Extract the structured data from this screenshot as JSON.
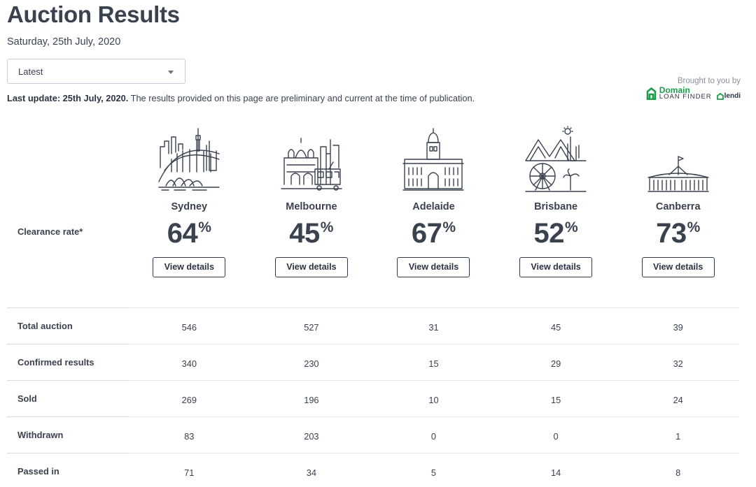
{
  "page": {
    "title": "Auction Results",
    "date": "Saturday, 25th July, 2020"
  },
  "filter": {
    "selected": "Latest"
  },
  "update": {
    "bold": "Last update: 25th July, 2020.",
    "text": " The results provided on this page are preliminary and current at the time of publication."
  },
  "sponsor": {
    "brought": "Brought to you by",
    "domain_line1": "Domain",
    "domain_line2": "LOAN FINDER",
    "lendi": "lendi"
  },
  "clearance": {
    "label": "Clearance rate*",
    "percent_sign": "%",
    "button_label": "View details"
  },
  "cities": [
    {
      "name": "Sydney",
      "rate": "64",
      "icon": "sydney-skyline-icon"
    },
    {
      "name": "Melbourne",
      "rate": "45",
      "icon": "melbourne-skyline-icon"
    },
    {
      "name": "Adelaide",
      "rate": "67",
      "icon": "adelaide-skyline-icon"
    },
    {
      "name": "Brisbane",
      "rate": "52",
      "icon": "brisbane-skyline-icon"
    },
    {
      "name": "Canberra",
      "rate": "73",
      "icon": "canberra-skyline-icon"
    }
  ],
  "results": {
    "rows": [
      {
        "label": "Total auction",
        "values": [
          "546",
          "527",
          "31",
          "45",
          "39"
        ]
      },
      {
        "label": "Confirmed results",
        "values": [
          "340",
          "230",
          "15",
          "29",
          "32"
        ]
      },
      {
        "label": "Sold",
        "values": [
          "269",
          "196",
          "10",
          "15",
          "24"
        ]
      },
      {
        "label": "Withdrawn",
        "values": [
          "83",
          "203",
          "0",
          "0",
          "1"
        ]
      },
      {
        "label": "Passed in",
        "values": [
          "71",
          "34",
          "5",
          "14",
          "8"
        ]
      }
    ]
  }
}
